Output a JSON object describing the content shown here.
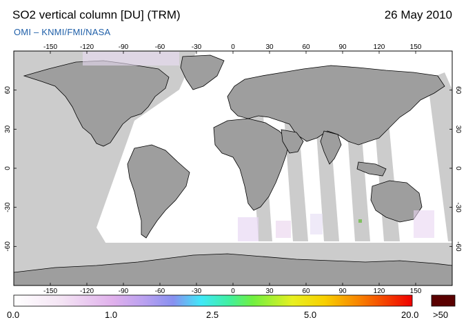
{
  "header": {
    "title": "SO2 vertical column [DU] (TRM)",
    "date": "26 May 2010",
    "credit": "OMI  –  KNMI/FMI/NASA"
  },
  "map": {
    "projection": "equirectangular",
    "lon_ticks": [
      "-150",
      "-120",
      "-90",
      "-60",
      "-30",
      "0",
      "30",
      "60",
      "90",
      "120",
      "150"
    ],
    "lat_ticks": [
      "60",
      "30",
      "0",
      "-30",
      "-60"
    ],
    "no_data_color": "#c8c8c8",
    "land_color": "#a0a0a0"
  },
  "colorbar": {
    "labels": [
      "0.0",
      "1.0",
      "2.5",
      "5.0",
      "20.0"
    ],
    "overflow_label": ">50",
    "overflow_color": "#5a0000",
    "colors": [
      "#ffffff",
      "#f0d0f0",
      "#c8a0f0",
      "#9090f0",
      "#40e0f0",
      "#60f060",
      "#f0f000",
      "#f09000",
      "#f00000"
    ]
  }
}
